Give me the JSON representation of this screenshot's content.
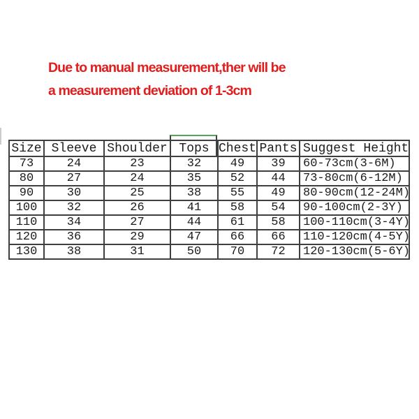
{
  "notice": {
    "line1": "Due to manual measurement,ther will be",
    "line2": "a measurement deviation of 1-3cm",
    "color": "#e11d1d"
  },
  "size_chart": {
    "columns": [
      "Size",
      "Sleeve",
      "Shoulder",
      "Tops",
      "Chest",
      "Pants",
      "Suggest Height"
    ],
    "rows": [
      [
        "73",
        "24",
        "23",
        "32",
        "49",
        "39",
        "60-73cm(3-6M)"
      ],
      [
        "80",
        "27",
        "24",
        "35",
        "52",
        "44",
        "73-80cm(6-12M)"
      ],
      [
        "90",
        "30",
        "25",
        "38",
        "55",
        "49",
        "80-90cm(12-24M)"
      ],
      [
        "100",
        "32",
        "26",
        "41",
        "58",
        "54",
        "90-100cm(2-3Y)"
      ],
      [
        "110",
        "34",
        "27",
        "44",
        "61",
        "58",
        "100-110cm(3-4Y)"
      ],
      [
        "120",
        "36",
        "29",
        "47",
        "66",
        "66",
        "110-120cm(4-5Y)"
      ],
      [
        "130",
        "38",
        "31",
        "50",
        "70",
        "72",
        "120-130cm(5-6Y)"
      ]
    ],
    "highlighted_column": "Tops",
    "highlight_color": "#53a653",
    "border_color": "#3f3f3f"
  }
}
